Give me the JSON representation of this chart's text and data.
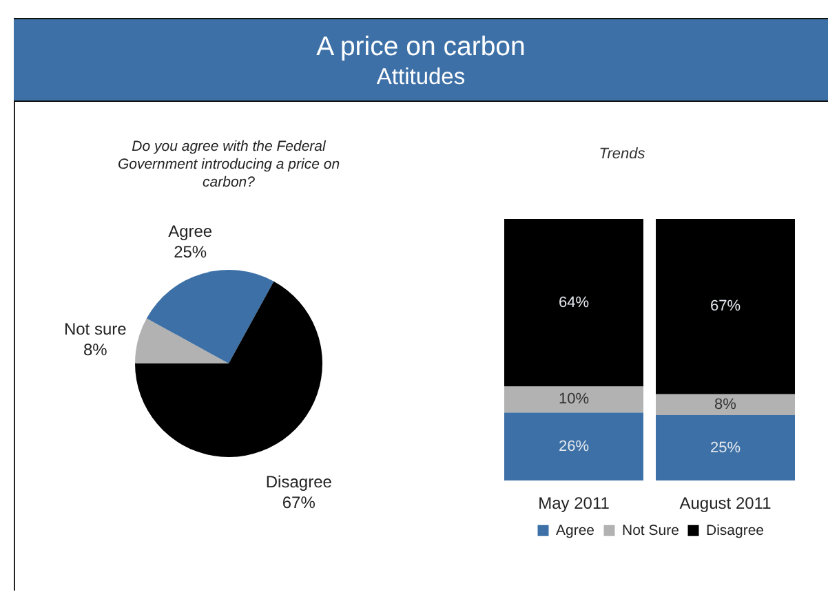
{
  "chart_data": [
    {
      "type": "other",
      "title": "A price on carbon",
      "subtitle": "Attitudes"
    },
    {
      "type": "pie",
      "title": "Do you agree with the Federal Government introducing a price on carbon?",
      "categories": [
        "Not sure",
        "Agree",
        "Disagree"
      ],
      "values": [
        8,
        25,
        67
      ],
      "colors": [
        "#b2b2b2",
        "#3d70a6",
        "#000000"
      ],
      "value_labels": [
        "8%",
        "25%",
        "67%"
      ]
    },
    {
      "type": "bar",
      "title": "Trends",
      "categories": [
        "May 2011",
        "August 2011"
      ],
      "stacked": true,
      "series": [
        {
          "name": "Agree",
          "color": "#3d70a6",
          "values": [
            26,
            25
          ],
          "value_labels": [
            "26%",
            "25%"
          ]
        },
        {
          "name": "Not Sure",
          "color": "#b2b2b2",
          "values": [
            10,
            8
          ],
          "value_labels": [
            "10%",
            "8%"
          ]
        },
        {
          "name": "Disagree",
          "color": "#000000",
          "values": [
            64,
            67
          ],
          "value_labels": [
            "64%",
            "67%"
          ]
        }
      ],
      "ylim": [
        0,
        100
      ],
      "tick_labels": "x",
      "legend": "bottom"
    }
  ]
}
